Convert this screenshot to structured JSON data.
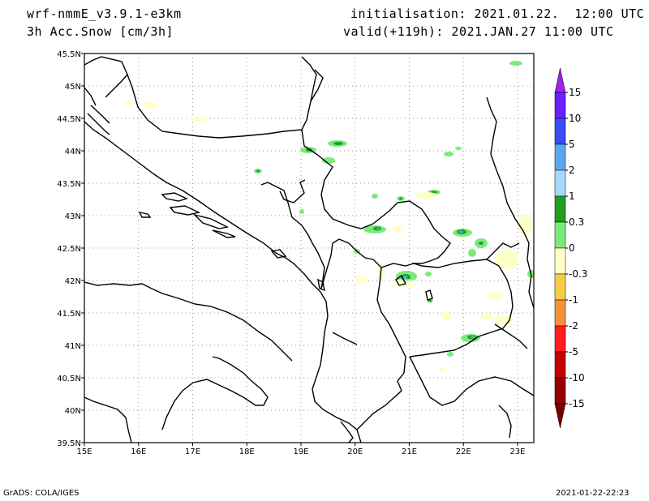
{
  "header": {
    "model": "wrf-nmmE_v3.9.1-e3km",
    "field": "3h Acc.Snow [cm/3h]",
    "init": "initialisation: 2021.01.22.  12:00 UTC",
    "valid": "valid(+119h): 2021.JAN.27 11:00 UTC"
  },
  "footer": {
    "credit": "GrADS: COLA/IGES",
    "timestamp": "2021-01-22-22:23"
  },
  "axes": {
    "lon_labels": [
      "15E",
      "16E",
      "17E",
      "18E",
      "19E",
      "20E",
      "21E",
      "22E",
      "23E"
    ],
    "lat_labels": [
      "45.5N",
      "45N",
      "44.5N",
      "44N",
      "43.5N",
      "43N",
      "42.5N",
      "42N",
      "41.5N",
      "41N",
      "40.5N",
      "40N",
      "39.5N"
    ],
    "lon_range": [
      15,
      23.3
    ],
    "lat_range": [
      39.5,
      45.5
    ],
    "grid": "dotted"
  },
  "colorbar": {
    "labels": [
      "15",
      "10",
      "5",
      "2",
      "1",
      "0.3",
      "0",
      "-0.3",
      "-1",
      "-2",
      "-5",
      "-10",
      "-15"
    ],
    "colors": [
      "#6a1fff",
      "#3a4cf5",
      "#5aa8f0",
      "#a8d8fa",
      "#1ea01e",
      "#7aeb7a",
      "#ffffff",
      "#ffffc8",
      "#f5cd46",
      "#f5913c",
      "#ff1e1e",
      "#c80000",
      "#960000"
    ],
    "top_arrow_color": "#a020f0",
    "bottom_arrow_color": "#780000"
  }
}
